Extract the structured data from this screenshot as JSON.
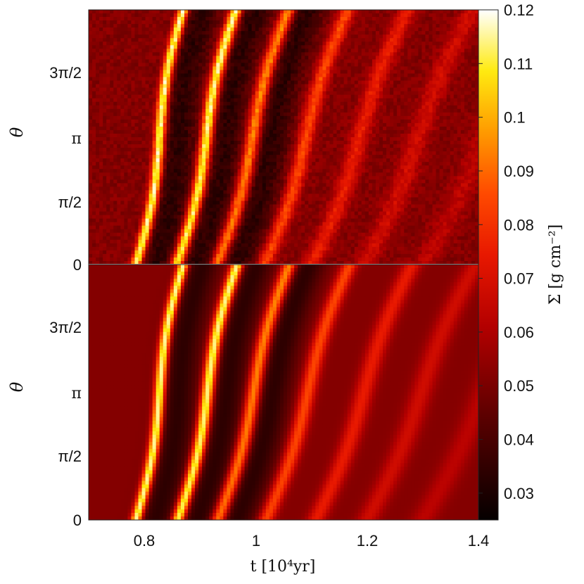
{
  "chart_data": [
    {
      "type": "heatmap",
      "panel": "top",
      "xlim": [
        0.7,
        1.4
      ],
      "ylim": [
        0,
        6.2832
      ],
      "ylabel": "θ",
      "yticks": [
        {
          "value": 0,
          "label": "0"
        },
        {
          "value": 1.5708,
          "label": "π/2"
        },
        {
          "value": 3.1416,
          "label": "π"
        },
        {
          "value": 4.7124,
          "label": "3π/2"
        }
      ],
      "ridges": [
        {
          "t0": 0.785,
          "peak": 0.12,
          "width": 0.007
        },
        {
          "t0": 0.858,
          "peak": 0.12,
          "width": 0.008
        },
        {
          "t0": 0.93,
          "peak": 0.1,
          "width": 0.009
        },
        {
          "t0": 1.015,
          "peak": 0.085,
          "width": 0.01
        },
        {
          "t0": 1.1,
          "peak": 0.075,
          "width": 0.012
        },
        {
          "t0": 1.195,
          "peak": 0.068,
          "width": 0.014
        },
        {
          "t0": 1.3,
          "peak": 0.063,
          "width": 0.016
        }
      ]
    },
    {
      "type": "heatmap",
      "panel": "bottom",
      "xlim": [
        0.7,
        1.4
      ],
      "ylim": [
        0,
        6.2832
      ],
      "xlabel": "t [10⁴yr]",
      "ylabel": "θ",
      "xticks": [
        {
          "value": 0.8,
          "label": "0.8"
        },
        {
          "value": 1.0,
          "label": "1"
        },
        {
          "value": 1.2,
          "label": "1.2"
        },
        {
          "value": 1.4,
          "label": "1.4"
        }
      ],
      "yticks": [
        {
          "value": 0,
          "label": "0"
        },
        {
          "value": 1.5708,
          "label": "π/2"
        },
        {
          "value": 3.1416,
          "label": "π"
        },
        {
          "value": 4.7124,
          "label": "3π/2"
        }
      ],
      "ridges": [
        {
          "t0": 0.785,
          "peak": 0.12,
          "width": 0.007
        },
        {
          "t0": 0.86,
          "peak": 0.12,
          "width": 0.008
        },
        {
          "t0": 0.932,
          "peak": 0.1,
          "width": 0.009
        },
        {
          "t0": 1.018,
          "peak": 0.085,
          "width": 0.01
        },
        {
          "t0": 1.108,
          "peak": 0.075,
          "width": 0.012
        },
        {
          "t0": 1.2,
          "peak": 0.068,
          "width": 0.014
        },
        {
          "t0": 1.3,
          "peak": 0.063,
          "width": 0.016
        }
      ]
    }
  ],
  "colorbar": {
    "label": "Σ [g cm⁻²]",
    "range": [
      0.025,
      0.12
    ],
    "ticks": [
      "0.03",
      "0.04",
      "0.05",
      "0.06",
      "0.07",
      "0.08",
      "0.09",
      "0.1",
      "0.11",
      "0.12"
    ],
    "colormap": "hot",
    "background_value": 0.052
  }
}
